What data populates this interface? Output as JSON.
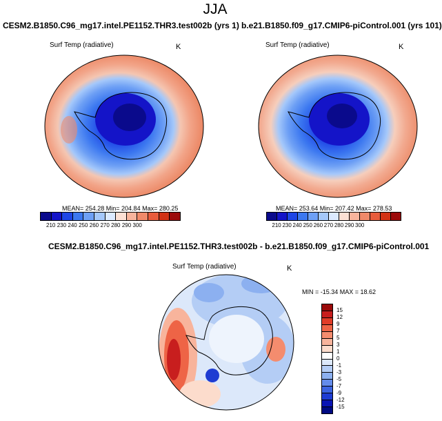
{
  "figure": {
    "title": "JJA"
  },
  "chart_data": [
    {
      "type": "heatmap",
      "projection": "south-polar stereographic",
      "title": "CESM2.B1850.C96_mg17.intel.PE1152.THR3.test002b (yrs 1)",
      "variable": "Surf Temp (radiative)",
      "units": "K",
      "stats": "MEAN= 254.28  Min= 204.84  Max= 280.25",
      "mean": 254.28,
      "min": 204.84,
      "max": 280.25,
      "colorbar_levels": [
        "210",
        "230",
        "240",
        "250",
        "260",
        "270",
        "280",
        "290",
        "300"
      ]
    },
    {
      "type": "heatmap",
      "projection": "south-polar stereographic",
      "title": "b.e21.B1850.f09_g17.CMIP6-piControl.001 (yrs 101)",
      "variable": "Surf Temp (radiative)",
      "units": "K",
      "stats": "MEAN= 253.64  Min= 207.42  Max= 278.53",
      "mean": 253.64,
      "min": 207.42,
      "max": 278.53,
      "colorbar_levels": [
        "210",
        "230",
        "240",
        "250",
        "260",
        "270",
        "280",
        "290",
        "300"
      ]
    },
    {
      "type": "heatmap",
      "projection": "south-polar stereographic",
      "title": "CESM2.B1850.C96_mg17.intel.PE1152.THR3.test002b - b.e21.B1850.f09_g17.CMIP6-piControl.001",
      "variable": "Surf Temp (radiative)",
      "units": "K",
      "stats": "MIN = -15.34  MAX =  18.62",
      "min": -15.34,
      "max": 18.62,
      "colorbar_levels": [
        "15",
        "12",
        "9",
        "7",
        "5",
        "3",
        "1",
        "0",
        "-1",
        "-3",
        "-5",
        "-7",
        "-9",
        "-12",
        "-15"
      ]
    }
  ],
  "colors": {
    "abs_scale": [
      "#0a0a8c",
      "#1414c8",
      "#1e46e6",
      "#3c78f0",
      "#6ea0f5",
      "#a5c8fa",
      "#dceaff",
      "#fce0d4",
      "#f8b49c",
      "#f08a6a",
      "#e85c3c",
      "#d23214",
      "#9c0a0a"
    ],
    "diff_scale": [
      "#9a0a0a",
      "#c81e1e",
      "#e03c28",
      "#ee6446",
      "#f48c6e",
      "#f8b49c",
      "#fcdccc",
      "#ffffff",
      "#dce8fa",
      "#b4cdf5",
      "#8cb0f0",
      "#648cea",
      "#3c64e0",
      "#1e3cd2",
      "#0a14b4",
      "#000a82"
    ],
    "ocean_warm": "#f4bca6",
    "ocean_mid": "#f8d8c8",
    "ice_ring": "#cfe0f8",
    "coast": "#000000"
  }
}
